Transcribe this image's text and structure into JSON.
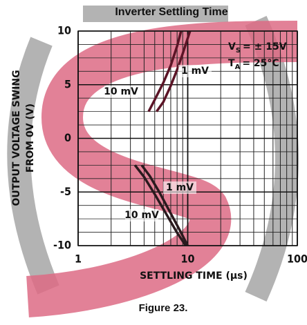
{
  "chart_data": {
    "type": "line",
    "title": "Inverter Settling Time",
    "xlabel": "SETTLING TIME (μs)",
    "ylabel": [
      "OUTPUT VOLTAGE SWING",
      "FROM 0V (V)"
    ],
    "caption": "Figure 23.",
    "xscale": "log",
    "xlim": [
      1,
      100
    ],
    "xticks": [
      1,
      10,
      100
    ],
    "ylim": [
      -10,
      10
    ],
    "yticks": [
      -10,
      -5,
      0,
      5,
      10
    ],
    "grid": true,
    "annotations": [
      {
        "symbol": "V",
        "subscript": "S",
        "text": "= ± 15V"
      },
      {
        "symbol": "T",
        "subscript": "A",
        "text": "= 25°C"
      }
    ],
    "series": [
      {
        "name": "10 mV",
        "color": "#5b1426",
        "x": [
          4.4,
          5,
          6,
          7,
          8,
          8.7
        ],
        "values": [
          2.5,
          3.6,
          5.2,
          6.8,
          8.6,
          10
        ]
      },
      {
        "name": "1 mV",
        "color": "#5b1426",
        "x": [
          5.2,
          6,
          7,
          8,
          9,
          10.5
        ],
        "values": [
          2.5,
          3.4,
          4.9,
          6.4,
          7.9,
          10
        ]
      },
      {
        "name": "1 mV",
        "color": "#2a1a1e",
        "x": [
          3.8,
          4.5,
          5.5,
          7,
          8.5,
          10
        ],
        "values": [
          -2.5,
          -3.5,
          -5,
          -7,
          -8.6,
          -10
        ]
      },
      {
        "name": "10 mV",
        "color": "#2a1a1e",
        "x": [
          3.3,
          4,
          5,
          6.5,
          8,
          9.6
        ],
        "values": [
          -2.5,
          -3.6,
          -5.2,
          -7.2,
          -8.8,
          -10
        ]
      }
    ]
  }
}
